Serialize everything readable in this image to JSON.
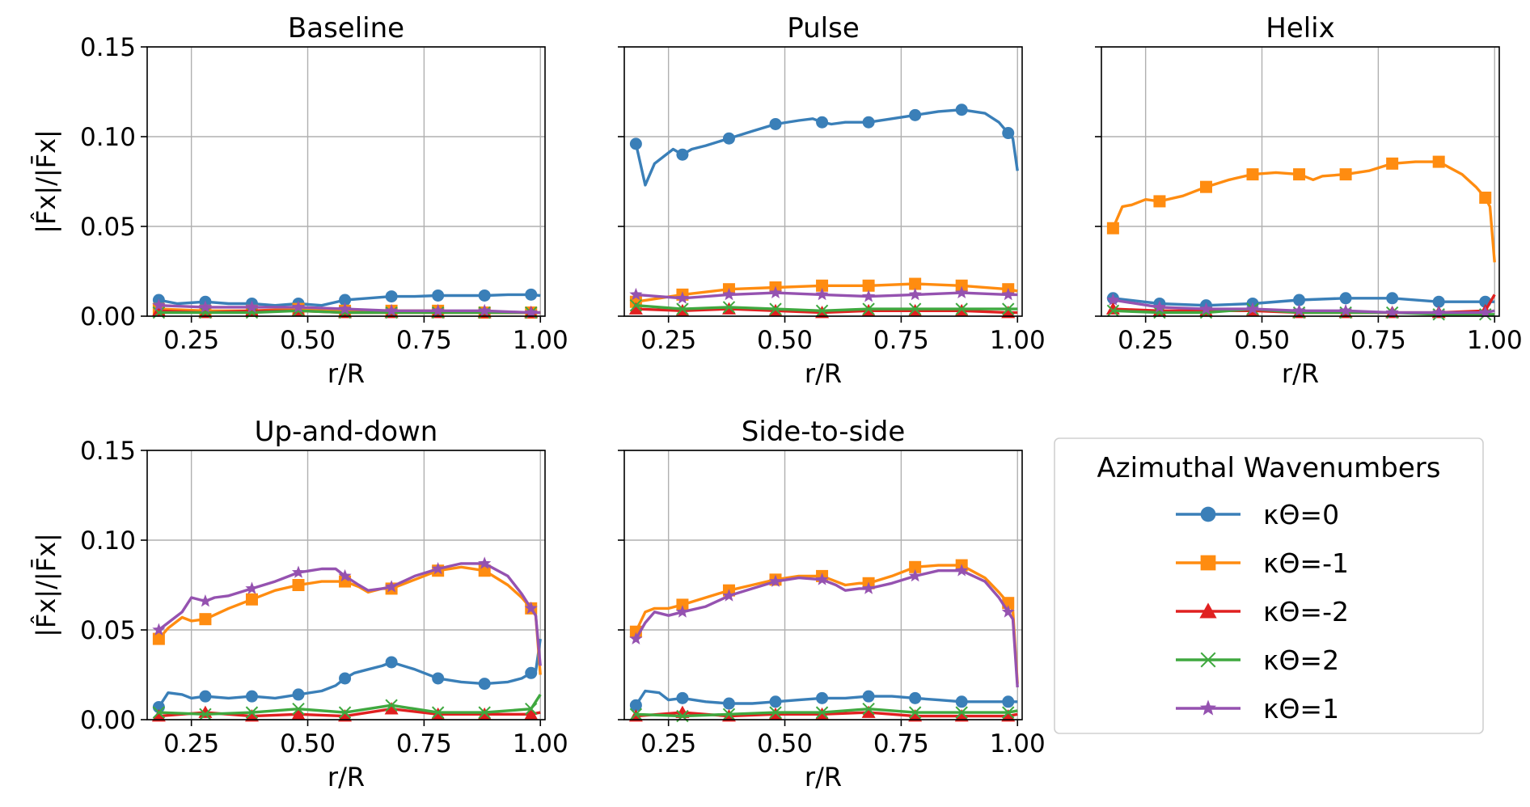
{
  "chart_data": [
    {
      "type": "line",
      "title": "Baseline",
      "xlabel": "r/R",
      "ylabel": "|F̂x|/|F̄x|",
      "xlim": [
        0.155,
        1.01
      ],
      "ylim": [
        0,
        0.15
      ],
      "xticks": [
        "0.25",
        "0.50",
        "0.75",
        "1.00"
      ],
      "yticks": [
        "0.00",
        "0.05",
        "0.10",
        "0.15"
      ],
      "grid": true,
      "series": [
        {
          "name": "κΘ=0",
          "x": [
            0.18,
            0.22,
            0.28,
            0.33,
            0.38,
            0.43,
            0.48,
            0.53,
            0.58,
            0.63,
            0.68,
            0.73,
            0.78,
            0.83,
            0.88,
            0.93,
            0.98,
            1.0
          ],
          "y": [
            0.009,
            0.007,
            0.008,
            0.007,
            0.007,
            0.006,
            0.007,
            0.006,
            0.009,
            0.01,
            0.011,
            0.011,
            0.0115,
            0.0115,
            0.0115,
            0.012,
            0.012,
            0.0115
          ]
        },
        {
          "name": "κΘ=-1",
          "x": [
            0.18,
            0.28,
            0.38,
            0.48,
            0.58,
            0.68,
            0.78,
            0.88,
            0.98,
            1.0
          ],
          "y": [
            0.004,
            0.003,
            0.003,
            0.004,
            0.003,
            0.003,
            0.003,
            0.002,
            0.002,
            0.002
          ]
        },
        {
          "name": "κΘ=-2",
          "x": [
            0.18,
            0.28,
            0.38,
            0.48,
            0.58,
            0.68,
            0.78,
            0.88,
            0.98,
            1.0
          ],
          "y": [
            0.003,
            0.002,
            0.003,
            0.003,
            0.002,
            0.002,
            0.002,
            0.002,
            0.002,
            0.002
          ]
        },
        {
          "name": "κΘ=2",
          "x": [
            0.18,
            0.28,
            0.38,
            0.48,
            0.58,
            0.68,
            0.78,
            0.88,
            0.98,
            1.0
          ],
          "y": [
            0.002,
            0.002,
            0.002,
            0.003,
            0.002,
            0.002,
            0.002,
            0.002,
            0.002,
            0.002
          ]
        },
        {
          "name": "κΘ=1",
          "x": [
            0.18,
            0.28,
            0.38,
            0.48,
            0.58,
            0.68,
            0.78,
            0.88,
            0.98,
            1.0
          ],
          "y": [
            0.006,
            0.005,
            0.005,
            0.005,
            0.004,
            0.003,
            0.003,
            0.003,
            0.002,
            0.002
          ]
        }
      ]
    },
    {
      "type": "line",
      "title": "Pulse",
      "xlabel": "r/R",
      "ylim": [
        0,
        0.15
      ],
      "xlim": [
        0.155,
        1.01
      ],
      "xticks": [
        "0.25",
        "0.50",
        "0.75",
        "1.00"
      ],
      "grid": true,
      "series": [
        {
          "name": "κΘ=0",
          "x": [
            0.18,
            0.2,
            0.22,
            0.24,
            0.26,
            0.28,
            0.3,
            0.33,
            0.38,
            0.43,
            0.48,
            0.53,
            0.56,
            0.58,
            0.6,
            0.63,
            0.68,
            0.73,
            0.78,
            0.83,
            0.88,
            0.93,
            0.96,
            0.98,
            0.99,
            1.0
          ],
          "y": [
            0.096,
            0.073,
            0.085,
            0.089,
            0.093,
            0.09,
            0.093,
            0.095,
            0.099,
            0.103,
            0.107,
            0.109,
            0.11,
            0.108,
            0.107,
            0.108,
            0.108,
            0.11,
            0.112,
            0.114,
            0.115,
            0.113,
            0.108,
            0.102,
            0.099,
            0.081
          ]
        },
        {
          "name": "κΘ=-1",
          "x": [
            0.18,
            0.28,
            0.38,
            0.48,
            0.58,
            0.68,
            0.78,
            0.88,
            0.98,
            1.0
          ],
          "y": [
            0.008,
            0.012,
            0.015,
            0.016,
            0.017,
            0.017,
            0.018,
            0.017,
            0.015,
            0.014
          ]
        },
        {
          "name": "κΘ=-2",
          "x": [
            0.18,
            0.28,
            0.38,
            0.48,
            0.58,
            0.68,
            0.78,
            0.88,
            0.98,
            1.0
          ],
          "y": [
            0.004,
            0.003,
            0.004,
            0.003,
            0.002,
            0.003,
            0.003,
            0.003,
            0.002,
            0.002
          ]
        },
        {
          "name": "κΘ=2",
          "x": [
            0.18,
            0.28,
            0.38,
            0.48,
            0.58,
            0.68,
            0.78,
            0.88,
            0.98,
            1.0
          ],
          "y": [
            0.006,
            0.004,
            0.005,
            0.004,
            0.003,
            0.004,
            0.004,
            0.004,
            0.004,
            0.004
          ]
        },
        {
          "name": "κΘ=1",
          "x": [
            0.18,
            0.28,
            0.38,
            0.48,
            0.58,
            0.68,
            0.78,
            0.88,
            0.98,
            1.0
          ],
          "y": [
            0.012,
            0.01,
            0.012,
            0.013,
            0.012,
            0.011,
            0.012,
            0.013,
            0.012,
            0.012
          ]
        }
      ]
    },
    {
      "type": "line",
      "title": "Helix",
      "xlabel": "r/R",
      "ylim": [
        0,
        0.15
      ],
      "xlim": [
        0.155,
        1.01
      ],
      "xticks": [
        "0.25",
        "0.50",
        "0.75",
        "1.00"
      ],
      "grid": true,
      "series": [
        {
          "name": "κΘ=0",
          "x": [
            0.18,
            0.28,
            0.38,
            0.48,
            0.58,
            0.68,
            0.78,
            0.88,
            0.98,
            1.0
          ],
          "y": [
            0.01,
            0.007,
            0.006,
            0.007,
            0.009,
            0.01,
            0.01,
            0.008,
            0.008,
            0.008
          ]
        },
        {
          "name": "κΘ=-1",
          "x": [
            0.18,
            0.2,
            0.22,
            0.25,
            0.28,
            0.33,
            0.38,
            0.43,
            0.48,
            0.53,
            0.58,
            0.61,
            0.63,
            0.68,
            0.73,
            0.78,
            0.83,
            0.88,
            0.93,
            0.96,
            0.98,
            0.99,
            1.0
          ],
          "y": [
            0.049,
            0.061,
            0.062,
            0.065,
            0.064,
            0.067,
            0.072,
            0.076,
            0.079,
            0.08,
            0.079,
            0.076,
            0.078,
            0.079,
            0.081,
            0.085,
            0.086,
            0.086,
            0.079,
            0.072,
            0.066,
            0.061,
            0.03
          ]
        },
        {
          "name": "κΘ=-2",
          "x": [
            0.18,
            0.28,
            0.38,
            0.48,
            0.58,
            0.68,
            0.78,
            0.88,
            0.98,
            1.0
          ],
          "y": [
            0.004,
            0.003,
            0.003,
            0.003,
            0.002,
            0.002,
            0.002,
            0.002,
            0.003,
            0.012
          ]
        },
        {
          "name": "κΘ=2",
          "x": [
            0.18,
            0.28,
            0.38,
            0.48,
            0.58,
            0.68,
            0.78,
            0.88,
            0.98,
            1.0
          ],
          "y": [
            0.003,
            0.002,
            0.002,
            0.004,
            0.002,
            0.002,
            0.002,
            0.001,
            0.001,
            0.001
          ]
        },
        {
          "name": "κΘ=1",
          "x": [
            0.18,
            0.28,
            0.38,
            0.48,
            0.58,
            0.68,
            0.78,
            0.88,
            0.98,
            1.0
          ],
          "y": [
            0.009,
            0.005,
            0.004,
            0.004,
            0.003,
            0.003,
            0.002,
            0.002,
            0.002,
            0.003
          ]
        }
      ]
    },
    {
      "type": "line",
      "title": "Up-and-down",
      "xlabel": "r/R",
      "ylabel": "|F̂x|/|F̄x|",
      "ylim": [
        0,
        0.15
      ],
      "xlim": [
        0.155,
        1.01
      ],
      "xticks": [
        "0.25",
        "0.50",
        "0.75",
        "1.00"
      ],
      "yticks": [
        "0.00",
        "0.05",
        "0.10",
        "0.15"
      ],
      "grid": true,
      "series": [
        {
          "name": "κΘ=0",
          "x": [
            0.18,
            0.2,
            0.23,
            0.25,
            0.28,
            0.33,
            0.38,
            0.43,
            0.48,
            0.53,
            0.56,
            0.58,
            0.6,
            0.63,
            0.66,
            0.68,
            0.73,
            0.78,
            0.83,
            0.88,
            0.93,
            0.96,
            0.98,
            0.99,
            1.0
          ],
          "y": [
            0.007,
            0.015,
            0.014,
            0.012,
            0.013,
            0.012,
            0.013,
            0.012,
            0.014,
            0.016,
            0.019,
            0.023,
            0.026,
            0.028,
            0.03,
            0.032,
            0.028,
            0.023,
            0.021,
            0.02,
            0.021,
            0.023,
            0.026,
            0.027,
            0.045
          ]
        },
        {
          "name": "κΘ=-1",
          "x": [
            0.18,
            0.2,
            0.23,
            0.25,
            0.28,
            0.33,
            0.38,
            0.43,
            0.48,
            0.53,
            0.58,
            0.61,
            0.63,
            0.66,
            0.68,
            0.73,
            0.78,
            0.83,
            0.88,
            0.93,
            0.96,
            0.98,
            0.99,
            1.0
          ],
          "y": [
            0.045,
            0.051,
            0.057,
            0.055,
            0.056,
            0.062,
            0.067,
            0.072,
            0.075,
            0.077,
            0.077,
            0.074,
            0.071,
            0.073,
            0.073,
            0.078,
            0.083,
            0.085,
            0.083,
            0.075,
            0.068,
            0.062,
            0.058,
            0.025
          ]
        },
        {
          "name": "κΘ=-2",
          "x": [
            0.18,
            0.28,
            0.38,
            0.48,
            0.58,
            0.68,
            0.78,
            0.88,
            0.98,
            1.0
          ],
          "y": [
            0.002,
            0.004,
            0.002,
            0.003,
            0.002,
            0.006,
            0.003,
            0.003,
            0.003,
            0.004
          ]
        },
        {
          "name": "κΘ=2",
          "x": [
            0.18,
            0.28,
            0.38,
            0.48,
            0.58,
            0.68,
            0.78,
            0.88,
            0.98,
            1.0
          ],
          "y": [
            0.004,
            0.003,
            0.004,
            0.006,
            0.004,
            0.008,
            0.004,
            0.004,
            0.006,
            0.014
          ]
        },
        {
          "name": "κΘ=1",
          "x": [
            0.18,
            0.2,
            0.23,
            0.25,
            0.28,
            0.3,
            0.33,
            0.38,
            0.43,
            0.48,
            0.53,
            0.56,
            0.58,
            0.61,
            0.63,
            0.66,
            0.68,
            0.73,
            0.78,
            0.83,
            0.88,
            0.93,
            0.96,
            0.98,
            0.99,
            1.0
          ],
          "y": [
            0.05,
            0.054,
            0.06,
            0.068,
            0.066,
            0.068,
            0.069,
            0.073,
            0.077,
            0.082,
            0.084,
            0.084,
            0.08,
            0.075,
            0.072,
            0.073,
            0.074,
            0.08,
            0.084,
            0.087,
            0.087,
            0.08,
            0.07,
            0.062,
            0.058,
            0.03
          ]
        }
      ]
    },
    {
      "type": "line",
      "title": "Side-to-side",
      "xlabel": "r/R",
      "ylim": [
        0,
        0.15
      ],
      "xlim": [
        0.155,
        1.01
      ],
      "xticks": [
        "0.25",
        "0.50",
        "0.75",
        "1.00"
      ],
      "grid": true,
      "series": [
        {
          "name": "κΘ=0",
          "x": [
            0.18,
            0.2,
            0.23,
            0.25,
            0.28,
            0.33,
            0.38,
            0.43,
            0.48,
            0.53,
            0.58,
            0.63,
            0.68,
            0.73,
            0.78,
            0.83,
            0.88,
            0.93,
            0.98,
            1.0
          ],
          "y": [
            0.008,
            0.016,
            0.015,
            0.011,
            0.012,
            0.01,
            0.009,
            0.009,
            0.01,
            0.011,
            0.012,
            0.012,
            0.013,
            0.013,
            0.012,
            0.011,
            0.01,
            0.01,
            0.01,
            0.01
          ]
        },
        {
          "name": "κΘ=-1",
          "x": [
            0.18,
            0.2,
            0.22,
            0.25,
            0.28,
            0.33,
            0.38,
            0.43,
            0.48,
            0.53,
            0.58,
            0.61,
            0.63,
            0.66,
            0.68,
            0.73,
            0.78,
            0.83,
            0.88,
            0.93,
            0.96,
            0.98,
            0.99,
            1.0
          ],
          "y": [
            0.049,
            0.06,
            0.062,
            0.062,
            0.064,
            0.068,
            0.072,
            0.075,
            0.078,
            0.08,
            0.08,
            0.077,
            0.075,
            0.076,
            0.076,
            0.08,
            0.085,
            0.086,
            0.086,
            0.079,
            0.071,
            0.065,
            0.061,
            0.02
          ]
        },
        {
          "name": "κΘ=-2",
          "x": [
            0.18,
            0.28,
            0.38,
            0.48,
            0.58,
            0.68,
            0.78,
            0.88,
            0.98,
            1.0
          ],
          "y": [
            0.002,
            0.004,
            0.002,
            0.003,
            0.003,
            0.004,
            0.002,
            0.002,
            0.002,
            0.003
          ]
        },
        {
          "name": "κΘ=2",
          "x": [
            0.18,
            0.28,
            0.38,
            0.48,
            0.58,
            0.68,
            0.78,
            0.88,
            0.98,
            1.0
          ],
          "y": [
            0.003,
            0.002,
            0.003,
            0.004,
            0.004,
            0.006,
            0.004,
            0.004,
            0.004,
            0.005
          ]
        },
        {
          "name": "κΘ=1",
          "x": [
            0.18,
            0.2,
            0.22,
            0.25,
            0.28,
            0.33,
            0.38,
            0.43,
            0.48,
            0.53,
            0.58,
            0.61,
            0.63,
            0.66,
            0.68,
            0.73,
            0.78,
            0.83,
            0.88,
            0.93,
            0.96,
            0.98,
            0.99,
            1.0
          ],
          "y": [
            0.045,
            0.054,
            0.06,
            0.058,
            0.06,
            0.063,
            0.069,
            0.073,
            0.077,
            0.079,
            0.078,
            0.075,
            0.072,
            0.073,
            0.073,
            0.076,
            0.08,
            0.083,
            0.083,
            0.077,
            0.068,
            0.06,
            0.056,
            0.018
          ]
        }
      ]
    }
  ],
  "legend": {
    "title": "Azimuthal Wavenumbers",
    "placement": "lower-right",
    "entries": [
      "κΘ=0",
      "κΘ=-1",
      "κΘ=-2",
      "κΘ=2",
      "κΘ=1"
    ]
  },
  "colors": {
    "κΘ=0": "#3a7fb8",
    "κΘ=-1": "#ff8c10",
    "κΘ=-2": "#e02020",
    "κΘ=2": "#3fa83f",
    "κΘ=1": "#9552b0"
  },
  "markers": {
    "κΘ=0": "circle",
    "κΘ=-1": "square",
    "κΘ=-2": "triangle",
    "κΘ=2": "x",
    "κΘ=1": "star"
  }
}
